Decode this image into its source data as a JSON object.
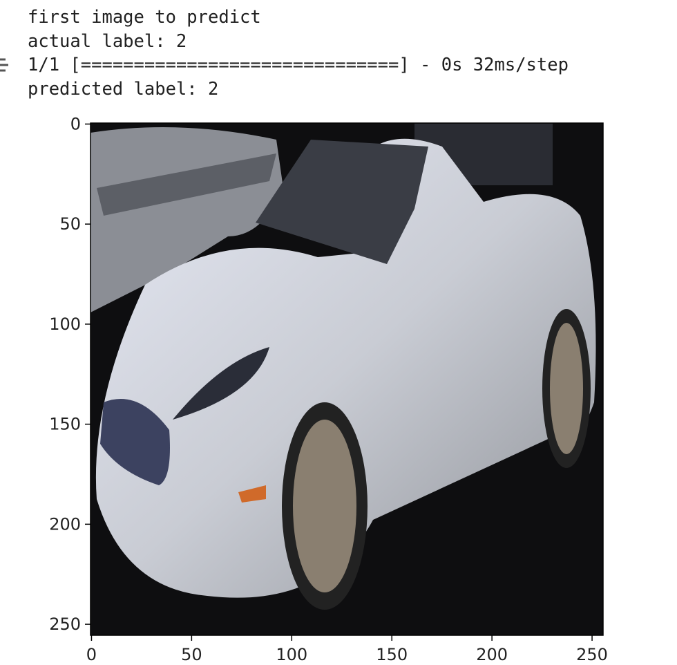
{
  "output": {
    "lines": [
      "first image to predict",
      "actual label: 2",
      "1/1 [==============================] - 0s 32ms/step",
      "predicted label: 2"
    ]
  },
  "plot": {
    "xlim": [
      -0.5,
      255.5
    ],
    "ylim": [
      255.5,
      -0.5
    ],
    "xticks": [
      0,
      50,
      100,
      150,
      200,
      250
    ],
    "yticks": [
      0,
      50,
      100,
      150,
      200,
      250
    ]
  }
}
